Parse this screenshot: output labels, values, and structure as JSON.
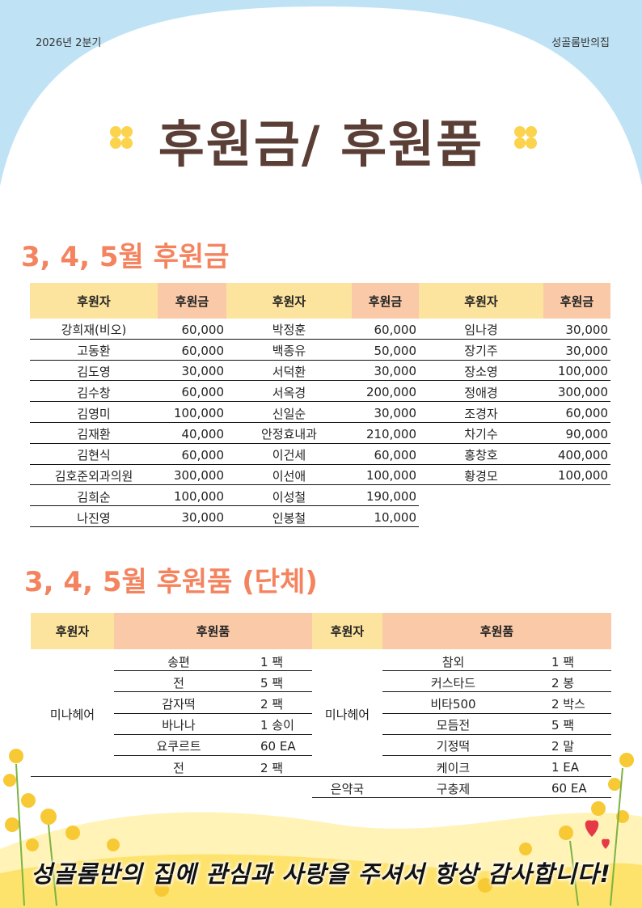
{
  "header": {
    "period": "2026년 2분기",
    "organization": "성골롬반의집",
    "title": "후원금/ 후원품"
  },
  "donations": {
    "title": "3, 4, 5월 후원금",
    "headers": [
      "후원자",
      "후원금",
      "후원자",
      "후원금",
      "후원자",
      "후원금"
    ],
    "groups": [
      [
        [
          "강희재(비오)",
          "60,000"
        ],
        [
          "고동환",
          "60,000"
        ],
        [
          "김도영",
          "30,000"
        ],
        [
          "김수창",
          "60,000"
        ],
        [
          "김영미",
          "100,000"
        ],
        [
          "김재환",
          "40,000"
        ],
        [
          "김현식",
          "60,000"
        ],
        [
          "김호준외과의원",
          "300,000"
        ],
        [
          "김희순",
          "100,000"
        ],
        [
          "나진영",
          "30,000"
        ]
      ],
      [
        [
          "박정훈",
          "60,000"
        ],
        [
          "백종유",
          "50,000"
        ],
        [
          "서덕환",
          "30,000"
        ],
        [
          "서옥경",
          "200,000"
        ],
        [
          "신일순",
          "30,000"
        ],
        [
          "안정효내과",
          "210,000"
        ],
        [
          "이건세",
          "60,000"
        ],
        [
          "이선애",
          "100,000"
        ],
        [
          "이성철",
          "190,000"
        ],
        [
          "인봉철",
          "10,000"
        ]
      ],
      [
        [
          "임나경",
          "30,000"
        ],
        [
          "장기주",
          "30,000"
        ],
        [
          "장소영",
          "100,000"
        ],
        [
          "정애경",
          "300,000"
        ],
        [
          "조경자",
          "60,000"
        ],
        [
          "차기수",
          "90,000"
        ],
        [
          "홍창호",
          "400,000"
        ],
        [
          "황경모",
          "100,000"
        ]
      ]
    ]
  },
  "goods": {
    "title": "3, 4, 5월 후원품 (단체)",
    "headers": [
      "후원자",
      "후원품",
      "후원자",
      "후원품"
    ],
    "left": [
      {
        "donor": "미나헤어",
        "items": [
          [
            "송편",
            "1 팩"
          ],
          [
            "전",
            "5 팩"
          ],
          [
            "감자떡",
            "2 팩"
          ],
          [
            "바나나",
            "1 송이"
          ],
          [
            "요쿠르트",
            "60 EA"
          ],
          [
            "전",
            "2 팩"
          ]
        ]
      }
    ],
    "right": [
      {
        "donor": "미나헤어",
        "items": [
          [
            "참외",
            "1 팩"
          ],
          [
            "커스타드",
            "2 봉"
          ],
          [
            "비타500",
            "2 박스"
          ],
          [
            "모듬전",
            "5 팩"
          ],
          [
            "기정떡",
            "2 말"
          ],
          [
            "케이크",
            "1 EA"
          ]
        ]
      },
      {
        "donor": "은약국",
        "items": [
          [
            "구충제",
            "60 EA"
          ]
        ]
      }
    ]
  },
  "footer": "성골롬반의 집에 관심과 사랑을 주셔서 항상 감사합니다!"
}
